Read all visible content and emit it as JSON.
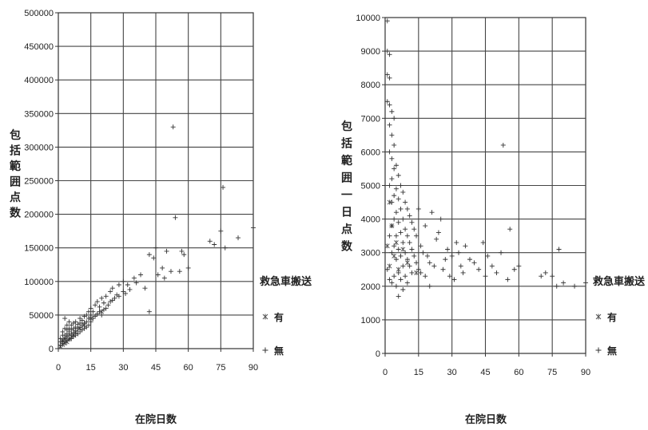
{
  "chart_data": [
    {
      "type": "scatter",
      "title": "",
      "ylabel": "包括範囲点数",
      "xlabel": "在院日数",
      "xlim": [
        0,
        90
      ],
      "ylim": [
        0,
        500000
      ],
      "xticks": [
        "0",
        "15",
        "30",
        "45",
        "60",
        "75",
        "90"
      ],
      "yticks": [
        "0",
        "50000",
        "100000",
        "150000",
        "200000",
        "250000",
        "300000",
        "350000",
        "400000",
        "450000",
        "500000"
      ],
      "grid": true,
      "legend": {
        "title": "救急車搬送",
        "position": "right",
        "entries": [
          {
            "name": "有",
            "marker": "*"
          },
          {
            "name": "無",
            "marker": "+"
          }
        ]
      },
      "series": [
        {
          "name": "有",
          "marker": "*",
          "x": [
            1,
            2,
            2,
            3,
            3,
            4,
            5,
            6,
            7,
            8,
            10,
            12,
            15,
            20
          ],
          "y": [
            3000,
            6000,
            12000,
            8000,
            15000,
            10000,
            14000,
            18000,
            20000,
            25000,
            30000,
            35000,
            45000,
            55000
          ]
        },
        {
          "name": "無",
          "marker": "+",
          "x": [
            1,
            1,
            1,
            2,
            2,
            2,
            2,
            3,
            3,
            3,
            3,
            3,
            4,
            4,
            4,
            4,
            4,
            5,
            5,
            5,
            5,
            5,
            6,
            6,
            6,
            6,
            7,
            7,
            7,
            7,
            8,
            8,
            8,
            8,
            9,
            9,
            9,
            10,
            10,
            10,
            10,
            11,
            11,
            11,
            12,
            12,
            12,
            13,
            13,
            13,
            14,
            14,
            14,
            15,
            15,
            15,
            16,
            16,
            17,
            17,
            18,
            18,
            19,
            19,
            20,
            20,
            21,
            21,
            22,
            22,
            23,
            24,
            24,
            25,
            25,
            26,
            27,
            28,
            28,
            30,
            30,
            31,
            32,
            33,
            35,
            36,
            38,
            40,
            42,
            42,
            44,
            45,
            46,
            48,
            49,
            50,
            52,
            53,
            54,
            56,
            57,
            58,
            60,
            70,
            72,
            75,
            76,
            77,
            83,
            90
          ],
          "y": [
            5000,
            10000,
            15000,
            8000,
            12000,
            20000,
            25000,
            10000,
            15000,
            20000,
            30000,
            45000,
            12000,
            18000,
            22000,
            28000,
            35000,
            14000,
            20000,
            25000,
            30000,
            40000,
            15000,
            22000,
            28000,
            35000,
            18000,
            24000,
            30000,
            38000,
            20000,
            26000,
            32000,
            40000,
            22000,
            30000,
            36000,
            25000,
            32000,
            38000,
            45000,
            28000,
            35000,
            42000,
            30000,
            38000,
            48000,
            32000,
            40000,
            50000,
            35000,
            45000,
            55000,
            40000,
            50000,
            60000,
            45000,
            55000,
            48000,
            65000,
            52000,
            70000,
            55000,
            62000,
            50000,
            75000,
            58000,
            68000,
            60000,
            78000,
            65000,
            70000,
            85000,
            72000,
            90000,
            75000,
            80000,
            78000,
            95000,
            85000,
            100000,
            82000,
            95000,
            88000,
            105000,
            98000,
            110000,
            90000,
            140000,
            55000,
            135000,
            150000,
            110000,
            120000,
            105000,
            145000,
            115000,
            330000,
            195000,
            115000,
            145000,
            140000,
            120000,
            160000,
            155000,
            175000,
            240000,
            150000,
            165000,
            180000
          ]
        }
      ]
    },
    {
      "type": "scatter",
      "title": "",
      "ylabel": "包括範囲一日点数",
      "xlabel": "在院日数",
      "xlim": [
        0,
        90
      ],
      "ylim": [
        0,
        10000
      ],
      "xticks": [
        "0",
        "15",
        "30",
        "45",
        "60",
        "75",
        "90"
      ],
      "yticks": [
        "0",
        "1000",
        "2000",
        "3000",
        "4000",
        "5000",
        "6000",
        "7000",
        "8000",
        "9000",
        "10000"
      ],
      "grid": true,
      "legend": {
        "title": "救急車搬送",
        "position": "right",
        "entries": [
          {
            "name": "有",
            "marker": "*"
          },
          {
            "name": "無",
            "marker": "+"
          }
        ]
      },
      "series": [
        {
          "name": "有",
          "marker": "*",
          "x": [
            1,
            2,
            2,
            3,
            4,
            5,
            6,
            8,
            10,
            14
          ],
          "y": [
            3200,
            4500,
            2600,
            3800,
            2900,
            3300,
            2500,
            3100,
            2700,
            2400
          ]
        },
        {
          "name": "無",
          "marker": "+",
          "x": [
            1,
            1,
            1,
            1,
            1,
            2,
            2,
            2,
            2,
            2,
            2,
            2,
            2,
            3,
            3,
            3,
            3,
            3,
            3,
            3,
            3,
            4,
            4,
            4,
            4,
            4,
            4,
            4,
            5,
            5,
            5,
            5,
            5,
            5,
            6,
            6,
            6,
            6,
            6,
            6,
            7,
            7,
            7,
            7,
            7,
            8,
            8,
            8,
            8,
            8,
            9,
            9,
            9,
            9,
            10,
            10,
            10,
            10,
            11,
            11,
            11,
            12,
            12,
            12,
            13,
            13,
            14,
            14,
            15,
            15,
            16,
            16,
            17,
            18,
            18,
            19,
            20,
            20,
            21,
            22,
            23,
            24,
            25,
            26,
            27,
            28,
            29,
            30,
            31,
            32,
            33,
            34,
            35,
            36,
            38,
            40,
            42,
            44,
            45,
            46,
            48,
            50,
            52,
            53,
            55,
            56,
            58,
            60,
            70,
            72,
            75,
            77,
            78,
            80,
            85,
            90
          ],
          "y": [
            9000,
            9900,
            8300,
            7500,
            2500,
            8900,
            8200,
            7400,
            6800,
            6000,
            5000,
            3500,
            2200,
            7200,
            6500,
            5800,
            5200,
            4500,
            3800,
            3000,
            2100,
            7000,
            6200,
            5500,
            4700,
            4000,
            3200,
            2300,
            5600,
            4900,
            4200,
            3500,
            2800,
            2000,
            5300,
            4600,
            3900,
            3100,
            2400,
            1700,
            5000,
            4300,
            3600,
            2900,
            2200,
            4800,
            4000,
            3300,
            2600,
            1900,
            4500,
            3700,
            3000,
            2300,
            4300,
            3500,
            2800,
            2100,
            4100,
            3300,
            2600,
            3900,
            3100,
            2400,
            3700,
            2900,
            3500,
            2700,
            4300,
            2500,
            3200,
            2400,
            3000,
            3800,
            2300,
            2900,
            2700,
            2000,
            4200,
            2600,
            3400,
            3600,
            4000,
            2500,
            2800,
            3100,
            2300,
            2900,
            2200,
            3300,
            3000,
            2600,
            2400,
            3200,
            2800,
            2700,
            2500,
            3300,
            2300,
            2900,
            2600,
            2400,
            3000,
            6200,
            2200,
            3700,
            2500,
            2600,
            2300,
            2400,
            2300,
            2000,
            3100,
            2100,
            2000,
            2100
          ]
        }
      ]
    }
  ]
}
